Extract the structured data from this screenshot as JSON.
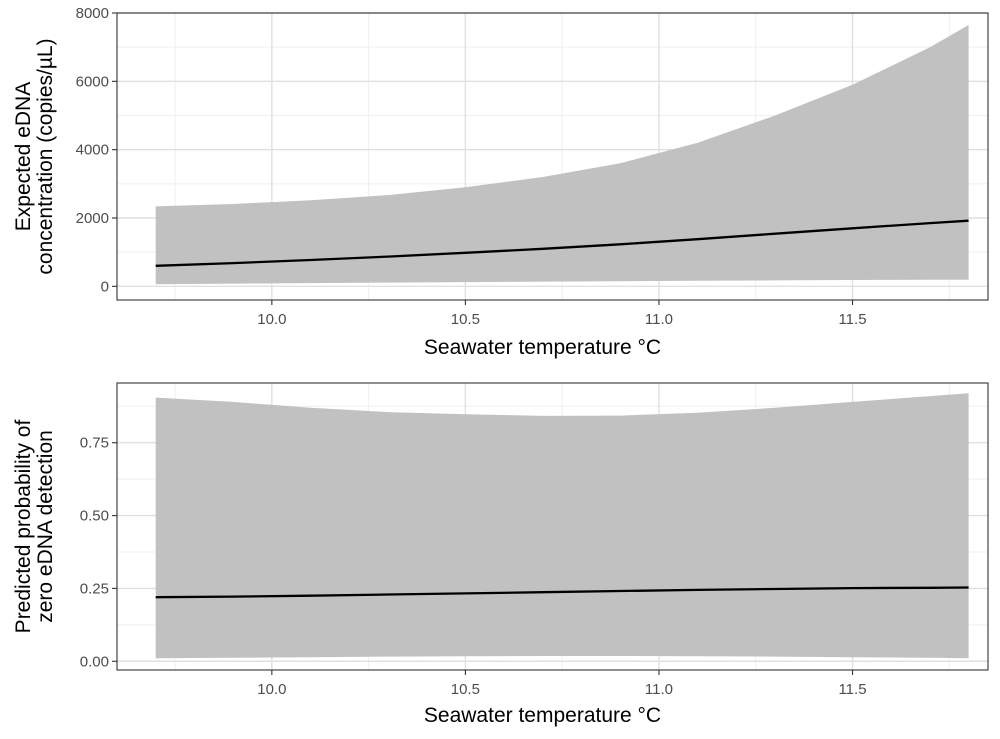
{
  "chart_data": [
    {
      "type": "line",
      "xlabel": "Seawater temperature °C",
      "ylabel_lines": [
        "Expected eDNA",
        "concentration (copies/µL)"
      ],
      "xlim": [
        9.6,
        11.85
      ],
      "ylim": [
        -400,
        8000
      ],
      "xticks": [
        10.0,
        10.5,
        11.0,
        11.5
      ],
      "xtick_labels": [
        "10.0",
        "10.5",
        "11.0",
        "11.5"
      ],
      "yticks": [
        0,
        2000,
        4000,
        6000,
        8000
      ],
      "ytick_labels": [
        "0",
        "2000",
        "4000",
        "6000",
        "8000"
      ],
      "grid": true,
      "colors": {
        "line": "#000000",
        "ribbon": "#bebebe",
        "grid_major": "#e0e0e0",
        "grid_minor": "#efefef",
        "panel_border": "#333333"
      },
      "series": [
        {
          "x": [
            9.7,
            9.9,
            10.1,
            10.3,
            10.5,
            10.7,
            10.9,
            11.1,
            11.3,
            11.5,
            11.7,
            11.8
          ],
          "y": [
            600,
            680,
            770,
            870,
            980,
            1100,
            1230,
            1380,
            1540,
            1700,
            1850,
            1920
          ],
          "lower": [
            60,
            80,
            95,
            110,
            125,
            140,
            150,
            165,
            175,
            185,
            190,
            190
          ],
          "upper": [
            2340,
            2410,
            2520,
            2670,
            2900,
            3200,
            3600,
            4200,
            5000,
            5900,
            7000,
            7650
          ]
        }
      ]
    },
    {
      "type": "line",
      "xlabel": "Seawater temperature °C",
      "ylabel_lines": [
        "Predicted probability of",
        "zero eDNA detection"
      ],
      "xlim": [
        9.6,
        11.85
      ],
      "ylim": [
        -0.03,
        0.955
      ],
      "xticks": [
        10.0,
        10.5,
        11.0,
        11.5
      ],
      "xtick_labels": [
        "10.0",
        "10.5",
        "11.0",
        "11.5"
      ],
      "yticks": [
        0.0,
        0.25,
        0.5,
        0.75
      ],
      "ytick_labels": [
        "0.00",
        "0.25",
        "0.50",
        "0.75"
      ],
      "grid": true,
      "colors": {
        "line": "#000000",
        "ribbon": "#bebebe",
        "grid_major": "#e0e0e0",
        "grid_minor": "#efefef",
        "panel_border": "#333333"
      },
      "series": [
        {
          "x": [
            9.7,
            9.9,
            10.1,
            10.3,
            10.5,
            10.7,
            10.9,
            11.1,
            11.3,
            11.5,
            11.7,
            11.8
          ],
          "y": [
            0.22,
            0.222,
            0.225,
            0.229,
            0.233,
            0.237,
            0.241,
            0.245,
            0.248,
            0.251,
            0.252,
            0.253
          ],
          "lower": [
            0.01,
            0.012,
            0.014,
            0.016,
            0.017,
            0.018,
            0.018,
            0.017,
            0.016,
            0.014,
            0.012,
            0.01
          ],
          "upper": [
            0.905,
            0.89,
            0.87,
            0.855,
            0.848,
            0.842,
            0.843,
            0.853,
            0.87,
            0.89,
            0.91,
            0.92
          ]
        }
      ]
    }
  ]
}
